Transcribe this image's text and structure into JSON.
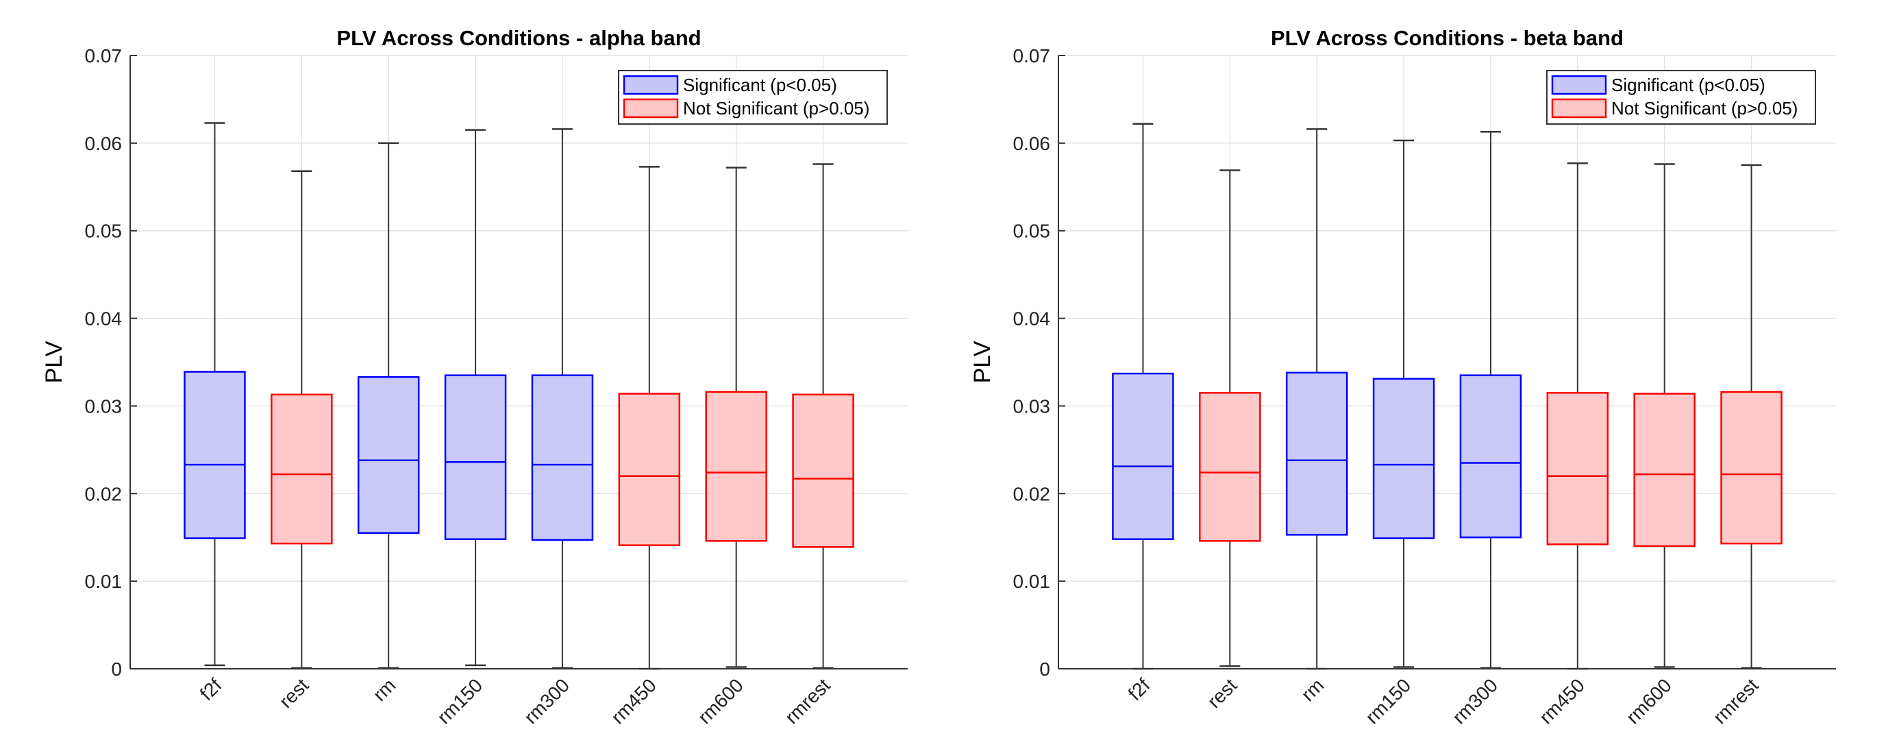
{
  "chart_data": [
    {
      "type": "box",
      "title": "PLV Across Conditions - alpha band",
      "xlabel": "",
      "ylabel": "PLV",
      "ylim": [
        0,
        0.07
      ],
      "yticks": [
        "0",
        "0.01",
        "0.02",
        "0.03",
        "0.04",
        "0.05",
        "0.06",
        "0.07"
      ],
      "grid": true,
      "legend_position": "top-right",
      "legend": [
        {
          "label": "Significant (p<0.05)",
          "edge": "#0000ff",
          "fill": "#c6c6f8"
        },
        {
          "label": "Not Significant (p>0.05)",
          "edge": "#ff0000",
          "fill": "#ffc6c6"
        }
      ],
      "categories": [
        "f2f",
        "rest",
        "rm",
        "rm150",
        "rm300",
        "rm450",
        "rm600",
        "rmrest"
      ],
      "significant": [
        true,
        false,
        true,
        true,
        true,
        false,
        false,
        false
      ],
      "boxes": [
        {
          "whisker_low": 0.0004,
          "q1": 0.0149,
          "median": 0.0233,
          "q3": 0.0339,
          "whisker_high": 0.0623
        },
        {
          "whisker_low": 0.0001,
          "q1": 0.0143,
          "median": 0.0222,
          "q3": 0.0313,
          "whisker_high": 0.0568
        },
        {
          "whisker_low": 0.0001,
          "q1": 0.0155,
          "median": 0.0238,
          "q3": 0.0333,
          "whisker_high": 0.06
        },
        {
          "whisker_low": 0.0004,
          "q1": 0.0148,
          "median": 0.0236,
          "q3": 0.0335,
          "whisker_high": 0.0615
        },
        {
          "whisker_low": 0.0001,
          "q1": 0.0147,
          "median": 0.0233,
          "q3": 0.0335,
          "whisker_high": 0.0616
        },
        {
          "whisker_low": 0.0,
          "q1": 0.0141,
          "median": 0.022,
          "q3": 0.0314,
          "whisker_high": 0.0573
        },
        {
          "whisker_low": 0.0002,
          "q1": 0.0146,
          "median": 0.0224,
          "q3": 0.0316,
          "whisker_high": 0.0572
        },
        {
          "whisker_low": 0.0001,
          "q1": 0.0139,
          "median": 0.0217,
          "q3": 0.0313,
          "whisker_high": 0.0576
        }
      ]
    },
    {
      "type": "box",
      "title": "PLV Across Conditions - beta band",
      "xlabel": "",
      "ylabel": "PLV",
      "ylim": [
        0,
        0.07
      ],
      "yticks": [
        "0",
        "0.01",
        "0.02",
        "0.03",
        "0.04",
        "0.05",
        "0.06",
        "0.07"
      ],
      "grid": true,
      "legend_position": "top-right",
      "legend": [
        {
          "label": "Significant (p<0.05)",
          "edge": "#0000ff",
          "fill": "#c6c6f8"
        },
        {
          "label": "Not Significant (p>0.05)",
          "edge": "#ff0000",
          "fill": "#ffc6c6"
        }
      ],
      "categories": [
        "f2f",
        "rest",
        "rm",
        "rm150",
        "rm300",
        "rm450",
        "rm600",
        "rmrest"
      ],
      "significant": [
        true,
        false,
        true,
        true,
        true,
        false,
        false,
        false
      ],
      "boxes": [
        {
          "whisker_low": 0.0,
          "q1": 0.0148,
          "median": 0.0231,
          "q3": 0.0337,
          "whisker_high": 0.0622
        },
        {
          "whisker_low": 0.0003,
          "q1": 0.0146,
          "median": 0.0224,
          "q3": 0.0315,
          "whisker_high": 0.0569
        },
        {
          "whisker_low": 0.0,
          "q1": 0.0153,
          "median": 0.0238,
          "q3": 0.0338,
          "whisker_high": 0.0616
        },
        {
          "whisker_low": 0.0002,
          "q1": 0.0149,
          "median": 0.0233,
          "q3": 0.0331,
          "whisker_high": 0.0603
        },
        {
          "whisker_low": 0.0001,
          "q1": 0.015,
          "median": 0.0235,
          "q3": 0.0335,
          "whisker_high": 0.0613
        },
        {
          "whisker_low": 0.0,
          "q1": 0.0142,
          "median": 0.022,
          "q3": 0.0315,
          "whisker_high": 0.0577
        },
        {
          "whisker_low": 0.0002,
          "q1": 0.014,
          "median": 0.0222,
          "q3": 0.0314,
          "whisker_high": 0.0576
        },
        {
          "whisker_low": 0.0001,
          "q1": 0.0143,
          "median": 0.0222,
          "q3": 0.0316,
          "whisker_high": 0.0575
        }
      ]
    }
  ]
}
